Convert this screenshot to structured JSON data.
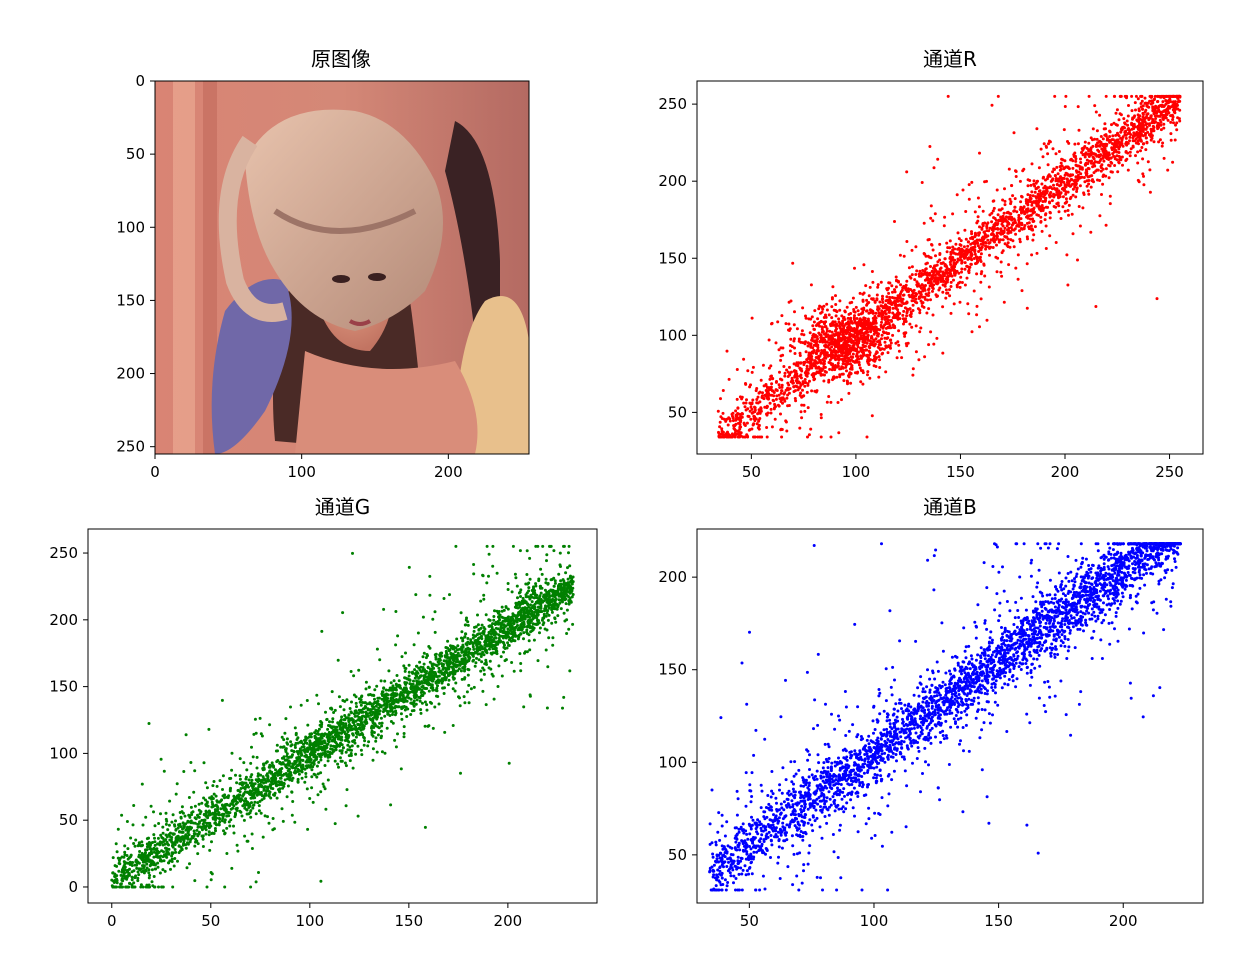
{
  "figure": {
    "background": "#ffffff"
  },
  "image_panel": {
    "title": "原图像",
    "image_alt": "original color photo: woman with wide-brim hat, feather boa, warm pink background",
    "xticks": [
      0,
      100,
      200
    ],
    "yticks": [
      0,
      50,
      100,
      150,
      200,
      250
    ],
    "xlim": [
      0,
      255
    ],
    "ylim": [
      255,
      0
    ]
  },
  "chart_data": [
    {
      "type": "scatter",
      "title": "通道R",
      "color": "#ff0000",
      "xlim": [
        24,
        266
      ],
      "ylim": [
        23,
        265
      ],
      "xticks": [
        50,
        100,
        150,
        200,
        250
      ],
      "yticks": [
        50,
        100,
        150,
        200,
        250
      ],
      "trend": {
        "slope": 1.0,
        "intercept": 0
      },
      "cluster": {
        "center": [
          95,
          97
        ],
        "spread": 12
      },
      "range": {
        "x": [
          34,
          255
        ],
        "y": [
          34,
          255
        ]
      },
      "n_points": 3500
    },
    {
      "type": "scatter",
      "title": "通道G",
      "color": "#008000",
      "xlim": [
        -12,
        245
      ],
      "ylim": [
        -12,
        268
      ],
      "xticks": [
        0,
        50,
        100,
        150,
        200
      ],
      "yticks": [
        0,
        50,
        100,
        150,
        200,
        250
      ],
      "trend": {
        "slope": 0.95,
        "intercept": 5
      },
      "range": {
        "x": [
          0,
          233
        ],
        "y": [
          0,
          255
        ]
      },
      "n_points": 3500
    },
    {
      "type": "scatter",
      "title": "通道B",
      "color": "#0000ff",
      "xlim": [
        29,
        232
      ],
      "ylim": [
        24,
        226
      ],
      "xticks": [
        50,
        100,
        150,
        200
      ],
      "yticks": [
        50,
        100,
        150,
        200
      ],
      "trend": {
        "slope": 1.0,
        "intercept": 5
      },
      "range": {
        "x": [
          34,
          223
        ],
        "y": [
          31,
          218
        ]
      },
      "n_points": 3500
    }
  ]
}
